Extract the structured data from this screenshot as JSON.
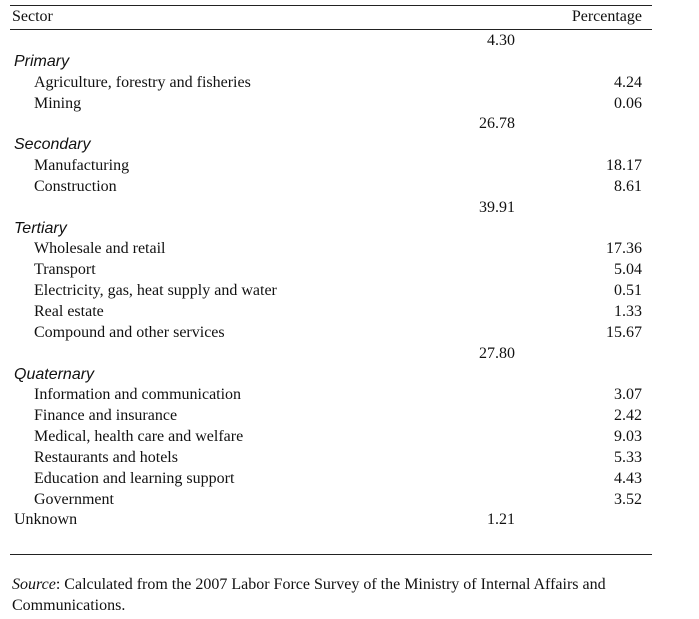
{
  "table": {
    "header": {
      "sector": "Sector",
      "percentage": "Percentage"
    },
    "groups": [
      {
        "subtotal": "4.30",
        "name": "Primary",
        "items": [
          {
            "label": "Agriculture, forestry and fisheries",
            "value": "4.24"
          },
          {
            "label": "Mining",
            "value": "0.06"
          }
        ]
      },
      {
        "subtotal": "26.78",
        "name": "Secondary",
        "items": [
          {
            "label": "Manufacturing",
            "value": "18.17"
          },
          {
            "label": "Construction",
            "value": "8.61"
          }
        ]
      },
      {
        "subtotal": "39.91",
        "name": "Tertiary",
        "items": [
          {
            "label": "Wholesale and retail",
            "value": "17.36"
          },
          {
            "label": "Transport",
            "value": "5.04"
          },
          {
            "label": "Electricity, gas, heat supply and water",
            "value": "0.51"
          },
          {
            "label": "Real estate",
            "value": "1.33"
          },
          {
            "label": "Compound and other services",
            "value": "15.67"
          }
        ]
      },
      {
        "subtotal": "27.80",
        "name": "Quaternary",
        "items": [
          {
            "label": "Information and communication",
            "value": "3.07"
          },
          {
            "label": "Finance and insurance",
            "value": "2.42"
          },
          {
            "label": "Medical, health care and welfare",
            "value": "9.03"
          },
          {
            "label": "Restaurants and hotels",
            "value": "5.33"
          },
          {
            "label": "Education and learning support",
            "value": "4.43"
          },
          {
            "label": "Government",
            "value": "3.52"
          }
        ]
      }
    ],
    "unknown": {
      "label": "Unknown",
      "subtotal": "1.21"
    }
  },
  "source": {
    "prefix": "Source",
    "text": ": Calculated from the 2007 Labor Force Survey of the Ministry of Internal Affairs and Communications."
  }
}
